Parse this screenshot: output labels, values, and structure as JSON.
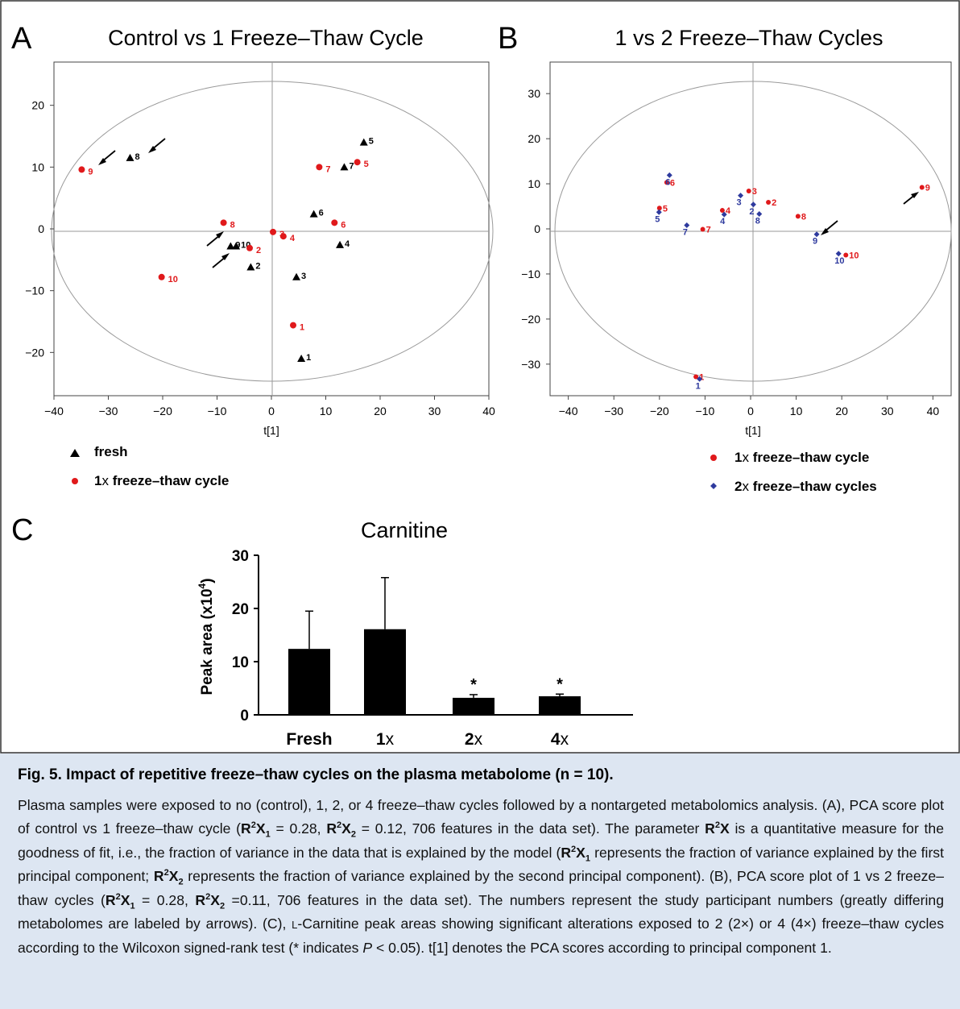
{
  "panels": {
    "A": {
      "letter": "A",
      "title": "Control vs 1 Freeze–Thaw Cycle",
      "xlabel": "t[1]",
      "xticks": [
        "-40",
        "-30",
        "-20",
        "-10",
        "0",
        "10",
        "20",
        "30",
        "40"
      ],
      "yticks": [
        "20",
        "10",
        "0",
        "-10",
        "-20"
      ],
      "legend": [
        {
          "marker": "triangle",
          "color": "#000000",
          "label": "fresh"
        },
        {
          "marker": "circle",
          "color": "#e0191b",
          "label_prefix": "1",
          "label_x": "x",
          "label_rest": " freeze–thaw cycle"
        }
      ]
    },
    "B": {
      "letter": "B",
      "title": "1 vs 2 Freeze–Thaw Cycles",
      "xlabel": "t[1]",
      "xticks": [
        "-40",
        "-30",
        "-20",
        "-10",
        "0",
        "10",
        "20",
        "30",
        "40"
      ],
      "yticks": [
        "30",
        "20",
        "10",
        "0",
        "-10",
        "-20",
        "-30"
      ],
      "legend": [
        {
          "marker": "circle",
          "color": "#e0191b",
          "label_prefix": "1",
          "label_x": "x",
          "label_rest": " freeze–thaw cycle"
        },
        {
          "marker": "diamond",
          "color": "#2e3a9e",
          "label_prefix": "2",
          "label_x": "x",
          "label_rest": " freeze–thaw cycles"
        }
      ]
    },
    "C": {
      "letter": "C",
      "title": "Carnitine",
      "ylabel_main": "Peak area (x10",
      "ylabel_sup": "4",
      "ylabel_end": ")",
      "yticks": [
        "30",
        "20",
        "10",
        "0"
      ],
      "categories": [
        {
          "bold": "Fresh",
          "normal": ""
        },
        {
          "bold": "1",
          "normal": "x"
        },
        {
          "bold": "2",
          "normal": "x"
        },
        {
          "bold": "4",
          "normal": "x"
        }
      ],
      "significance_mark": "*"
    }
  },
  "chart_data": [
    {
      "type": "scatter",
      "title": "Control vs 1 Freeze–Thaw Cycle",
      "xlabel": "t[1]",
      "ylabel": "",
      "xlim": [
        -40,
        40
      ],
      "ylim": [
        -27,
        27
      ],
      "grid": false,
      "legend_position": "bottom-left",
      "series": [
        {
          "name": "fresh",
          "marker": "triangle",
          "color": "#000000",
          "points": [
            {
              "label": "1",
              "x": 5.5,
              "y": -21.0
            },
            {
              "label": "2",
              "x": -3.8,
              "y": -6.2
            },
            {
              "label": "3",
              "x": 4.6,
              "y": -7.8
            },
            {
              "label": "4",
              "x": 12.6,
              "y": -2.6
            },
            {
              "label": "5",
              "x": 17.0,
              "y": 14.0
            },
            {
              "label": "6",
              "x": 7.8,
              "y": 2.4
            },
            {
              "label": "7",
              "x": 13.4,
              "y": 10.0
            },
            {
              "label": "8",
              "x": -26.0,
              "y": 11.5
            },
            {
              "label": "9",
              "x": -7.5,
              "y": -2.8
            },
            {
              "label": "10",
              "x": -6.5,
              "y": -2.8
            }
          ]
        },
        {
          "name": "1x freeze–thaw cycle",
          "marker": "circle",
          "color": "#e0191b",
          "points": [
            {
              "label": "1",
              "x": 4.0,
              "y": -15.6
            },
            {
              "label": "2",
              "x": -4.0,
              "y": -3.1
            },
            {
              "label": "3",
              "x": 0.3,
              "y": -0.5
            },
            {
              "label": "4",
              "x": 2.2,
              "y": -1.2
            },
            {
              "label": "5",
              "x": 15.8,
              "y": 10.8
            },
            {
              "label": "6",
              "x": 11.6,
              "y": 1.0
            },
            {
              "label": "7",
              "x": 8.8,
              "y": 10.0
            },
            {
              "label": "8",
              "x": -8.8,
              "y": 1.0
            },
            {
              "label": "9",
              "x": -34.9,
              "y": 9.6
            },
            {
              "label": "10",
              "x": -20.2,
              "y": -7.8
            }
          ]
        }
      ]
    },
    {
      "type": "scatter",
      "title": "1 vs 2 Freeze–Thaw Cycles",
      "xlabel": "t[1]",
      "ylabel": "",
      "xlim": [
        -44,
        44
      ],
      "ylim": [
        -37,
        37
      ],
      "grid": false,
      "legend_position": "bottom",
      "series": [
        {
          "name": "1x freeze–thaw cycle",
          "marker": "circle",
          "color": "#e0191b",
          "points": [
            {
              "label": "1",
              "x": -12.0,
              "y": -32.8
            },
            {
              "label": "2",
              "x": 3.9,
              "y": 5.9
            },
            {
              "label": "3",
              "x": -0.4,
              "y": 8.4
            },
            {
              "label": "4",
              "x": -6.2,
              "y": 4.1
            },
            {
              "label": "5",
              "x": -20.0,
              "y": 4.6
            },
            {
              "label": "6",
              "x": -18.4,
              "y": 10.3
            },
            {
              "label": "7",
              "x": -10.5,
              "y": -0.1
            },
            {
              "label": "8",
              "x": 10.4,
              "y": 2.8
            },
            {
              "label": "9",
              "x": 37.6,
              "y": 9.2
            },
            {
              "label": "10",
              "x": 20.9,
              "y": -5.8
            }
          ]
        },
        {
          "name": "2x freeze–thaw cycles",
          "marker": "diamond",
          "color": "#2e3a9e",
          "points": [
            {
              "label": "1",
              "x": -11.2,
              "y": -33.3
            },
            {
              "label": "2",
              "x": 0.6,
              "y": 5.4
            },
            {
              "label": "3",
              "x": -2.2,
              "y": 7.4
            },
            {
              "label": "4",
              "x": -5.8,
              "y": 3.2
            },
            {
              "label": "5",
              "x": -20.1,
              "y": 3.7
            },
            {
              "label": "6",
              "x": -17.8,
              "y": 11.9
            },
            {
              "label": "7",
              "x": -14.0,
              "y": 0.8
            },
            {
              "label": "8",
              "x": 1.9,
              "y": 3.3
            },
            {
              "label": "9",
              "x": 14.5,
              "y": -1.2
            },
            {
              "label": "10",
              "x": 19.3,
              "y": -5.5
            }
          ]
        }
      ]
    },
    {
      "type": "bar",
      "title": "Carnitine",
      "xlabel": "",
      "ylabel": "Peak area (x10^4)",
      "ylim": [
        0,
        30
      ],
      "categories": [
        "Fresh",
        "1x",
        "2x",
        "4x"
      ],
      "values": [
        12.4,
        16.1,
        3.2,
        3.5
      ],
      "error_upper": [
        19.5,
        25.8,
        3.8,
        3.9
      ],
      "significant": [
        false,
        false,
        true,
        true
      ]
    }
  ],
  "caption": {
    "title": "Fig. 5. Impact of repetitive freeze–thaw cycles on the plasma metabolome (n = 10).",
    "line1": "Plasma samples were exposed to no (control), 1, 2, or 4 freeze–thaw cycles followed by a nontargeted metabolomics analysis.",
    "line2_a": "(A), PCA score plot of control vs 1 freeze–thaw cycle (",
    "r2x1_value": " = 0.28, ",
    "r2x2_value": " = 0.12, 706 features in the data set). The parameter",
    "line3_rest": " is a quantitative measure for the goodness of fit, i.e., the fraction of variance in the data that is explained by the model",
    "line4_open": "(",
    "line4_rest": " represents the fraction of variance explained by the first principal component; ",
    "line4_end": " represents the fraction of variance",
    "line5_a": "explained by the second principal component). (B), PCA score plot of 1 vs 2 freeze–thaw cycles (",
    "b_x1_value": " = 0.28, ",
    "b_x2_value": " =0.11,",
    "line6": "706 features in the data set). The numbers represent the study participant numbers (greatly differing metabolomes are labeled",
    "line7_a": "by arrows). (C), ",
    "line7_l": "L",
    "line7_b": "-Carnitine peak areas showing significant alterations exposed to 2 (2×) or 4 (4×) freeze–thaw cycles according",
    "line8_a": "to the Wilcoxon signed-rank test (* indicates ",
    "line8_p": "P",
    "line8_b": " < 0.05). t[1] denotes the PCA scores according to principal component 1.",
    "r": "R",
    "two": "2",
    "x": "X",
    "sub1": "1",
    "sub2": "2"
  }
}
